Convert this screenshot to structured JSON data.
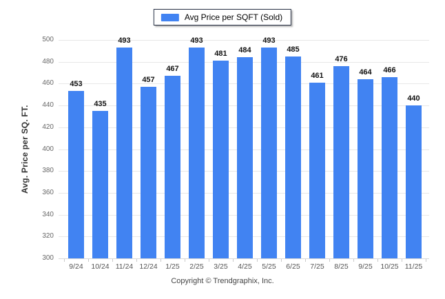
{
  "page": {
    "background": "#ffffff"
  },
  "legend": {
    "label": "Avg Price per SQFT (Sold)",
    "swatch_color": "#4183f2"
  },
  "footer": {
    "copyright": "Copyright © Trendgraphix, Inc."
  },
  "chart_data": {
    "type": "bar",
    "title": "",
    "xlabel": "",
    "ylabel": "Avg. Price per SQ. FT.",
    "categories": [
      "9/24",
      "10/24",
      "11/24",
      "12/24",
      "1/25",
      "2/25",
      "3/25",
      "4/25",
      "5/25",
      "6/25",
      "7/25",
      "8/25",
      "9/25",
      "10/25",
      "11/25"
    ],
    "series": [
      {
        "name": "Avg Price per SQFT (Sold)",
        "values": [
          453,
          435,
          493,
          457,
          467,
          493,
          481,
          484,
          493,
          485,
          461,
          476,
          464,
          466,
          440
        ]
      }
    ],
    "ylim": [
      300,
      500
    ],
    "ytick_step": 20,
    "bar_color": "#4183f2",
    "value_labels": true,
    "grid": "horizontal",
    "legend_position": "top"
  }
}
